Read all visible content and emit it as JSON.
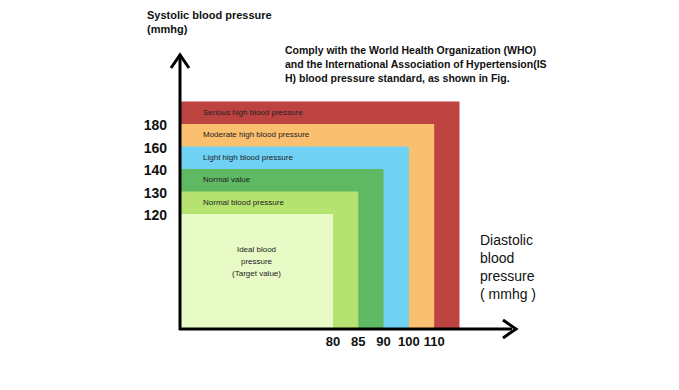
{
  "chart_data": {
    "type": "region",
    "title": [
      "Comply with the World Health Organization (WHO)",
      "and the International Association of Hypertension(IS",
      "H) blood pressure standard, as shown in Fig."
    ],
    "y_label": [
      "Systolic blood pressure",
      "(mmhg)"
    ],
    "x_label": [
      "Diastolic",
      "blood",
      "pressure",
      "( mmhg )"
    ],
    "categories": [
      80,
      85,
      90,
      100,
      110
    ],
    "y_categories": [
      120,
      130,
      140,
      160,
      180
    ],
    "regions": [
      {
        "label": [
          "Serious high blood pressure"
        ],
        "color": "#bd4340",
        "systolic": null,
        "diastolic": null
      },
      {
        "label": [
          "Moderate high blood pressure"
        ],
        "color": "#fbbf70",
        "systolic": 180,
        "diastolic": 110
      },
      {
        "label": [
          "Light high blood pressure"
        ],
        "color": "#6fd1f4",
        "systolic": 160,
        "diastolic": 100
      },
      {
        "label": [
          "Normal value"
        ],
        "color": "#5fb862",
        "systolic": 140,
        "diastolic": 90
      },
      {
        "label": [
          "Normal blood pressure"
        ],
        "color": "#b6e36f",
        "systolic": 130,
        "diastolic": 85
      },
      {
        "label": [
          "Ideal blood",
          "pressure",
          "(Target value)"
        ],
        "color": "#e8fbc6",
        "systolic": 120,
        "diastolic": 80
      }
    ]
  }
}
